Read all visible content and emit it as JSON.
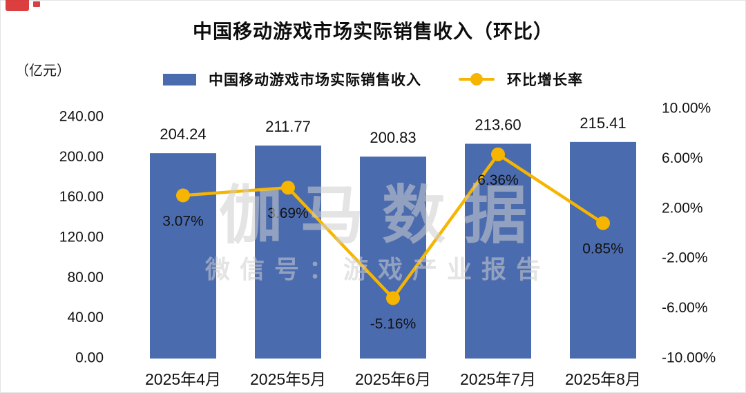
{
  "title": "中国移动游戏市场实际销售收入（环比）",
  "unit_label": "（亿元）",
  "legend": {
    "bar_label": "中国移动游戏市场实际销售收入",
    "line_label": "环比增长率"
  },
  "watermark": {
    "line1": "伽马数据",
    "line2": "微信号：游戏产业报告"
  },
  "colors": {
    "bar": "#4B6BAF",
    "line": "#F6B500",
    "text": "#111111",
    "watermark": "#CDCDCD"
  },
  "chart_data": {
    "type": "bar",
    "title": "中国移动游戏市场实际销售收入（环比）",
    "categories": [
      "2025年4月",
      "2025年5月",
      "2025年6月",
      "2025年7月",
      "2025年8月"
    ],
    "series": [
      {
        "name": "中国移动游戏市场实际销售收入",
        "type": "bar",
        "axis": "left",
        "color": "#4B6BAF",
        "values": [
          204.24,
          211.77,
          200.83,
          213.6,
          215.41
        ],
        "labels": [
          "204.24",
          "211.77",
          "200.83",
          "213.60",
          "215.41"
        ]
      },
      {
        "name": "环比增长率",
        "type": "line",
        "axis": "right",
        "color": "#F6B500",
        "values": [
          3.07,
          3.69,
          -5.16,
          6.36,
          0.85
        ],
        "labels": [
          "3.07%",
          "3.69%",
          "-5.16%",
          "6.36%",
          "0.85%"
        ]
      }
    ],
    "left_axis": {
      "unit": "（亿元）",
      "min": 0,
      "max": 240,
      "ticks": [
        {
          "label": "240.00",
          "value": 240
        },
        {
          "label": "200.00",
          "value": 200
        },
        {
          "label": "160.00",
          "value": 160
        },
        {
          "label": "120.00",
          "value": 120
        },
        {
          "label": "80.00",
          "value": 80
        },
        {
          "label": "40.00",
          "value": 40
        },
        {
          "label": "0.00",
          "value": 0
        }
      ]
    },
    "right_axis": {
      "min": -10,
      "max": 10,
      "ticks": [
        {
          "label": "10.00%",
          "value": 10
        },
        {
          "label": "6.00%",
          "value": 6
        },
        {
          "label": "2.00%",
          "value": 2
        },
        {
          "label": "-2.00%",
          "value": -2
        },
        {
          "label": "-6.00%",
          "value": -6
        },
        {
          "label": "-10.00%",
          "value": -10
        }
      ]
    },
    "grid": false,
    "legend_position": "top"
  }
}
